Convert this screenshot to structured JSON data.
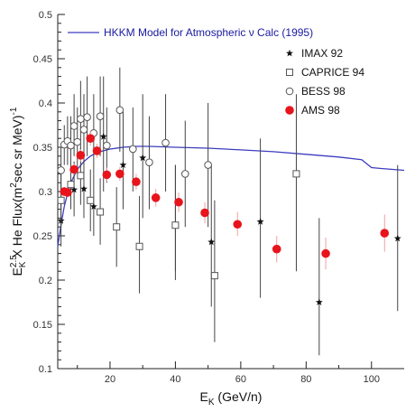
{
  "chart_data": {
    "type": "scatter",
    "title": "",
    "xlabel": "E",
    "xlabel_sub": "K",
    "xlabel_unit": " (GeV/n)",
    "ylabel_parts": [
      "E",
      "2.5",
      "K",
      "X He Flux(m",
      "2",
      "sec sr MeV)",
      "-1"
    ],
    "xlim": [
      4,
      110
    ],
    "ylim": [
      0.1,
      0.5
    ],
    "xticks": [
      20,
      40,
      60,
      80,
      100
    ],
    "xtick_labels": [
      "20",
      "40",
      "60",
      "80",
      "100"
    ],
    "yticks": [
      0.1,
      0.15,
      0.2,
      0.25,
      0.3,
      0.35,
      0.4,
      0.45,
      0.5
    ],
    "ytick_labels": [
      "0.1",
      "0.15",
      "0.2",
      "0.25",
      "0.3",
      "0.35",
      "0.4",
      "0.45",
      "0.5"
    ],
    "grid": false,
    "legend_position": "top-right",
    "model": {
      "name": "HKKM Model for Atmospheric ν Calc (1995)",
      "color": "#3d3dbf",
      "x": [
        4,
        5,
        6,
        7,
        8,
        10,
        12,
        14,
        16,
        18,
        20,
        24,
        28,
        32,
        40,
        50,
        60,
        70,
        80,
        90,
        97,
        100,
        103,
        110
      ],
      "y": [
        0.238,
        0.262,
        0.283,
        0.298,
        0.31,
        0.325,
        0.334,
        0.34,
        0.344,
        0.346,
        0.348,
        0.35,
        0.351,
        0.351,
        0.35,
        0.349,
        0.347,
        0.345,
        0.342,
        0.339,
        0.336,
        0.327,
        0.326,
        0.324
      ]
    },
    "series": [
      {
        "name": "IMAX 92",
        "marker": "star",
        "color": "#111111",
        "points": [
          {
            "x": 5,
            "y": 0.267,
            "lo": 0.238,
            "hi": 0.296
          },
          {
            "x": 9,
            "y": 0.302,
            "lo": 0.272,
            "hi": 0.334
          },
          {
            "x": 12,
            "y": 0.303,
            "lo": 0.27,
            "hi": 0.338
          },
          {
            "x": 15,
            "y": 0.283,
            "lo": 0.25,
            "hi": 0.32
          },
          {
            "x": 18,
            "y": 0.362,
            "lo": 0.3,
            "hi": 0.43
          },
          {
            "x": 24,
            "y": 0.33,
            "lo": 0.28,
            "hi": 0.39
          },
          {
            "x": 30,
            "y": 0.338,
            "lo": 0.27,
            "hi": 0.41
          },
          {
            "x": 40,
            "y": 0.262,
            "lo": 0.21,
            "hi": 0.33
          },
          {
            "x": 51,
            "y": 0.243,
            "lo": 0.17,
            "hi": 0.33
          },
          {
            "x": 66,
            "y": 0.266,
            "lo": 0.18,
            "hi": 0.36
          },
          {
            "x": 84,
            "y": 0.175,
            "lo": 0.115,
            "hi": 0.27
          },
          {
            "x": 108,
            "y": 0.247,
            "lo": 0.165,
            "hi": 0.33
          }
        ]
      },
      {
        "name": "CAPRICE 94",
        "marker": "square",
        "color": "#555555",
        "points": [
          {
            "x": 5,
            "y": 0.29,
            "lo": 0.26,
            "hi": 0.32
          },
          {
            "x": 8,
            "y": 0.308,
            "lo": 0.28,
            "hi": 0.338
          },
          {
            "x": 11,
            "y": 0.318,
            "lo": 0.285,
            "hi": 0.35
          },
          {
            "x": 14,
            "y": 0.29,
            "lo": 0.255,
            "hi": 0.325
          },
          {
            "x": 17,
            "y": 0.277,
            "lo": 0.24,
            "hi": 0.315
          },
          {
            "x": 22,
            "y": 0.26,
            "lo": 0.215,
            "hi": 0.305
          },
          {
            "x": 29,
            "y": 0.238,
            "lo": 0.185,
            "hi": 0.295
          },
          {
            "x": 40,
            "y": 0.262,
            "lo": 0.2,
            "hi": 0.33
          },
          {
            "x": 52,
            "y": 0.205,
            "lo": 0.13,
            "hi": 0.29
          },
          {
            "x": 77,
            "y": 0.32,
            "lo": 0.21,
            "hi": 0.41
          }
        ]
      },
      {
        "name": "BESS 98",
        "marker": "circle-open",
        "color": "#555555",
        "points": [
          {
            "x": 5,
            "y": 0.324,
            "lo": 0.3,
            "hi": 0.35
          },
          {
            "x": 6,
            "y": 0.353,
            "lo": 0.33,
            "hi": 0.375
          },
          {
            "x": 7,
            "y": 0.357,
            "lo": 0.33,
            "hi": 0.385
          },
          {
            "x": 8,
            "y": 0.352,
            "lo": 0.32,
            "hi": 0.385
          },
          {
            "x": 9,
            "y": 0.374,
            "lo": 0.34,
            "hi": 0.41
          },
          {
            "x": 10,
            "y": 0.356,
            "lo": 0.32,
            "hi": 0.395
          },
          {
            "x": 11,
            "y": 0.382,
            "lo": 0.34,
            "hi": 0.425
          },
          {
            "x": 12,
            "y": 0.37,
            "lo": 0.33,
            "hi": 0.41
          },
          {
            "x": 13,
            "y": 0.384,
            "lo": 0.34,
            "hi": 0.43
          },
          {
            "x": 15,
            "y": 0.366,
            "lo": 0.32,
            "hi": 0.41
          },
          {
            "x": 17,
            "y": 0.385,
            "lo": 0.34,
            "hi": 0.43
          },
          {
            "x": 19,
            "y": 0.352,
            "lo": 0.31,
            "hi": 0.395
          },
          {
            "x": 23,
            "y": 0.392,
            "lo": 0.345,
            "hi": 0.44
          },
          {
            "x": 27,
            "y": 0.348,
            "lo": 0.3,
            "hi": 0.395
          },
          {
            "x": 32,
            "y": 0.333,
            "lo": 0.28,
            "hi": 0.385
          },
          {
            "x": 37,
            "y": 0.355,
            "lo": 0.3,
            "hi": 0.41
          },
          {
            "x": 43,
            "y": 0.32,
            "lo": 0.26,
            "hi": 0.38
          },
          {
            "x": 50,
            "y": 0.33,
            "lo": 0.26,
            "hi": 0.4
          }
        ]
      },
      {
        "name": "AMS 98",
        "marker": "circle-filled",
        "color": "#e8141c",
        "points": [
          {
            "x": 6,
            "y": 0.3,
            "lo": 0.295,
            "hi": 0.305
          },
          {
            "x": 7,
            "y": 0.299,
            "lo": 0.294,
            "hi": 0.304
          },
          {
            "x": 9,
            "y": 0.325,
            "lo": 0.319,
            "hi": 0.331
          },
          {
            "x": 11,
            "y": 0.341,
            "lo": 0.334,
            "hi": 0.348
          },
          {
            "x": 14,
            "y": 0.36,
            "lo": 0.352,
            "hi": 0.368
          },
          {
            "x": 16,
            "y": 0.346,
            "lo": 0.338,
            "hi": 0.354
          },
          {
            "x": 19,
            "y": 0.319,
            "lo": 0.311,
            "hi": 0.327
          },
          {
            "x": 23,
            "y": 0.32,
            "lo": 0.312,
            "hi": 0.328
          },
          {
            "x": 28,
            "y": 0.311,
            "lo": 0.302,
            "hi": 0.32
          },
          {
            "x": 34,
            "y": 0.293,
            "lo": 0.283,
            "hi": 0.303
          },
          {
            "x": 41,
            "y": 0.288,
            "lo": 0.277,
            "hi": 0.299
          },
          {
            "x": 49,
            "y": 0.276,
            "lo": 0.264,
            "hi": 0.288
          },
          {
            "x": 59,
            "y": 0.263,
            "lo": 0.25,
            "hi": 0.277
          },
          {
            "x": 71,
            "y": 0.235,
            "lo": 0.22,
            "hi": 0.25
          },
          {
            "x": 86,
            "y": 0.23,
            "lo": 0.212,
            "hi": 0.248
          },
          {
            "x": 104,
            "y": 0.253,
            "lo": 0.232,
            "hi": 0.274
          }
        ]
      }
    ]
  }
}
